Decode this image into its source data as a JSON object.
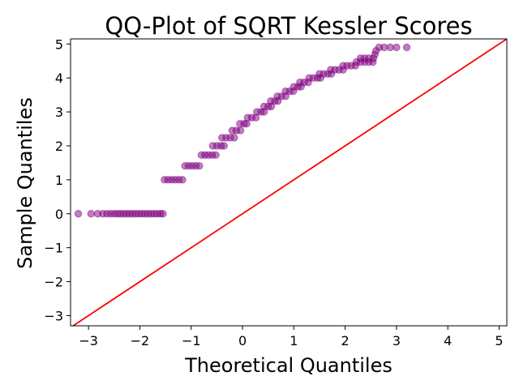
{
  "chart_data": {
    "type": "scatter",
    "title": "QQ-Plot of SQRT Kessler Scores",
    "xlabel": "Theoretical Quantiles",
    "ylabel": "Sample Quantiles",
    "xlim": [
      -3.35,
      5.15
    ],
    "ylim": [
      -3.3,
      5.15
    ],
    "x_ticks": [
      -3,
      -2,
      -1,
      0,
      1,
      2,
      3,
      4,
      5
    ],
    "y_ticks": [
      -3,
      -2,
      -1,
      0,
      1,
      2,
      3,
      4,
      5
    ],
    "x_tick_labels": [
      "−3",
      "−2",
      "−1",
      "0",
      "1",
      "2",
      "3",
      "4",
      "5"
    ],
    "y_tick_labels": [
      "−3",
      "−2",
      "−1",
      "0",
      "1",
      "2",
      "3",
      "4",
      "5"
    ],
    "grid": false,
    "reference_line": {
      "label": "",
      "color": "#ff0000",
      "slope": 1,
      "intercept": 0
    },
    "series": [
      {
        "color": "#800080",
        "alpha": 0.5,
        "points": [
          [
            -3.2,
            0
          ],
          [
            -2.95,
            0
          ],
          [
            -2.82,
            0
          ],
          [
            -2.72,
            0
          ],
          [
            -2.64,
            0
          ],
          [
            -2.57,
            0
          ],
          [
            -2.5,
            0
          ],
          [
            -2.44,
            0
          ],
          [
            -2.38,
            0
          ],
          [
            -2.32,
            0
          ],
          [
            -2.26,
            0
          ],
          [
            -2.2,
            0
          ],
          [
            -2.14,
            0
          ],
          [
            -2.08,
            0
          ],
          [
            -2.02,
            0
          ],
          [
            -1.96,
            0
          ],
          [
            -1.9,
            0
          ],
          [
            -1.84,
            0
          ],
          [
            -1.78,
            0
          ],
          [
            -1.72,
            0
          ],
          [
            -1.66,
            0
          ],
          [
            -1.6,
            0
          ],
          [
            -1.55,
            0
          ],
          [
            -1.52,
            1
          ],
          [
            -1.45,
            1
          ],
          [
            -1.38,
            1
          ],
          [
            -1.31,
            1
          ],
          [
            -1.24,
            1
          ],
          [
            -1.17,
            1
          ],
          [
            -1.12,
            1.41
          ],
          [
            -1.05,
            1.41
          ],
          [
            -0.98,
            1.41
          ],
          [
            -0.91,
            1.41
          ],
          [
            -0.84,
            1.41
          ],
          [
            -0.8,
            1.73
          ],
          [
            -0.73,
            1.73
          ],
          [
            -0.66,
            1.73
          ],
          [
            -0.59,
            1.73
          ],
          [
            -0.52,
            1.73
          ],
          [
            -0.58,
            2
          ],
          [
            -0.5,
            2
          ],
          [
            -0.42,
            2
          ],
          [
            -0.36,
            2
          ],
          [
            -0.4,
            2.24
          ],
          [
            -0.32,
            2.24
          ],
          [
            -0.24,
            2.24
          ],
          [
            -0.16,
            2.24
          ],
          [
            -0.2,
            2.45
          ],
          [
            -0.12,
            2.45
          ],
          [
            -0.04,
            2.45
          ],
          [
            -0.05,
            2.65
          ],
          [
            0.03,
            2.65
          ],
          [
            0.08,
            2.65
          ],
          [
            0.1,
            2.83
          ],
          [
            0.18,
            2.83
          ],
          [
            0.26,
            2.83
          ],
          [
            0.28,
            3
          ],
          [
            0.36,
            3
          ],
          [
            0.42,
            3
          ],
          [
            0.42,
            3.16
          ],
          [
            0.5,
            3.16
          ],
          [
            0.56,
            3.16
          ],
          [
            0.55,
            3.32
          ],
          [
            0.63,
            3.32
          ],
          [
            0.69,
            3.32
          ],
          [
            0.68,
            3.46
          ],
          [
            0.76,
            3.46
          ],
          [
            0.84,
            3.46
          ],
          [
            0.84,
            3.61
          ],
          [
            0.92,
            3.61
          ],
          [
            0.99,
            3.61
          ],
          [
            1.0,
            3.74
          ],
          [
            1.08,
            3.74
          ],
          [
            1.14,
            3.74
          ],
          [
            1.12,
            3.87
          ],
          [
            1.2,
            3.87
          ],
          [
            1.28,
            3.87
          ],
          [
            1.3,
            4
          ],
          [
            1.38,
            4
          ],
          [
            1.46,
            4
          ],
          [
            1.52,
            4
          ],
          [
            1.5,
            4.12
          ],
          [
            1.58,
            4.12
          ],
          [
            1.66,
            4.12
          ],
          [
            1.73,
            4.12
          ],
          [
            1.72,
            4.24
          ],
          [
            1.8,
            4.24
          ],
          [
            1.88,
            4.24
          ],
          [
            1.96,
            4.24
          ],
          [
            1.96,
            4.36
          ],
          [
            2.04,
            4.36
          ],
          [
            2.12,
            4.36
          ],
          [
            2.2,
            4.36
          ],
          [
            2.22,
            4.47
          ],
          [
            2.3,
            4.47
          ],
          [
            2.38,
            4.47
          ],
          [
            2.46,
            4.47
          ],
          [
            2.54,
            4.47
          ],
          [
            2.3,
            4.58
          ],
          [
            2.38,
            4.58
          ],
          [
            2.46,
            4.58
          ],
          [
            2.55,
            4.58
          ],
          [
            2.58,
            4.69
          ],
          [
            2.6,
            4.8
          ],
          [
            2.66,
            4.9
          ],
          [
            2.76,
            4.9
          ],
          [
            2.88,
            4.9
          ],
          [
            3.0,
            4.9
          ],
          [
            3.2,
            4.9
          ]
        ]
      }
    ]
  }
}
